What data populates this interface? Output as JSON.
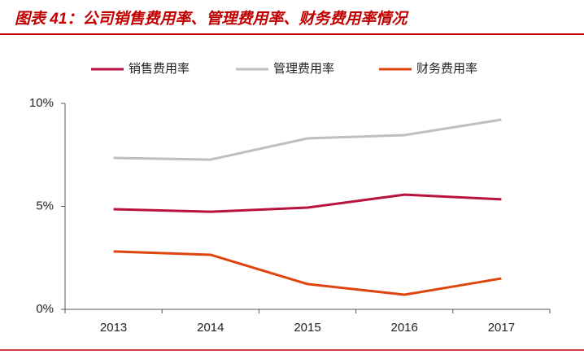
{
  "chart_data": {
    "type": "line",
    "title": "图表 41：公司销售费用率、管理费用率、财务费用率情况",
    "categories": [
      "2013",
      "2014",
      "2015",
      "2016",
      "2017"
    ],
    "series": [
      {
        "name": "销售费用率",
        "color": "#b8123e",
        "values": [
          4.86,
          4.74,
          4.94,
          5.57,
          5.34
        ]
      },
      {
        "name": "管理费用率",
        "color": "#bfbfbf",
        "values": [
          7.35,
          7.27,
          8.3,
          8.46,
          9.21
        ]
      },
      {
        "name": "财务费用率",
        "color": "#e0440e",
        "values": [
          2.81,
          2.65,
          1.23,
          0.71,
          1.5
        ]
      }
    ],
    "ylim": [
      0,
      10
    ],
    "yticks": [
      {
        "value": 0,
        "label": "0%"
      },
      {
        "value": 5,
        "label": "5%"
      },
      {
        "value": 10,
        "label": "10%"
      }
    ],
    "grid": false,
    "legend": "top"
  }
}
